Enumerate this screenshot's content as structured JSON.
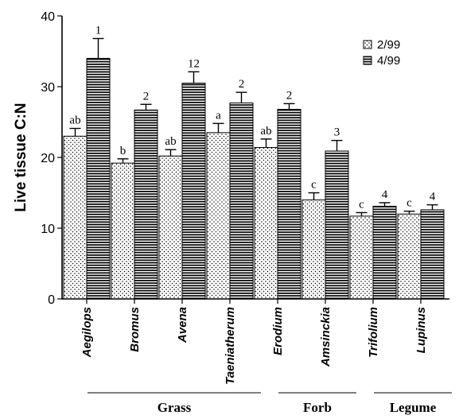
{
  "chart_data": {
    "type": "bar",
    "title": "",
    "ylabel": "Live tissue C:N",
    "xlabel": "",
    "ylim": [
      0,
      40
    ],
    "yticks": [
      0,
      10,
      20,
      30,
      40
    ],
    "categories": [
      "Aegilops",
      "Bromus",
      "Avena",
      "Taeniatherum",
      "Erodium",
      "Amsinckia",
      "Trifolium",
      "Lupinus"
    ],
    "series": [
      {
        "name": "2/99",
        "pattern": "dots",
        "values": [
          23.0,
          19.2,
          20.2,
          23.5,
          21.4,
          14.0,
          11.7,
          12.0
        ],
        "errors": [
          1.1,
          0.6,
          0.9,
          1.3,
          1.2,
          1.0,
          0.5,
          0.4
        ],
        "letters": [
          "ab",
          "b",
          "ab",
          "a",
          "ab",
          "c",
          "c",
          "c"
        ]
      },
      {
        "name": "4/99",
        "pattern": "horizontal-lines",
        "values": [
          34.0,
          26.7,
          30.5,
          27.7,
          26.8,
          20.9,
          13.1,
          12.6
        ],
        "errors": [
          2.8,
          0.8,
          1.6,
          1.5,
          0.8,
          1.5,
          0.5,
          0.7
        ],
        "letters": [
          "1",
          "2",
          "12",
          "2",
          "2",
          "3",
          "4",
          "4"
        ]
      }
    ],
    "groups": [
      {
        "label": "Grass",
        "categories": [
          "Aegilops",
          "Bromus",
          "Avena",
          "Taeniatherum"
        ]
      },
      {
        "label": "Forb",
        "categories": [
          "Erodium",
          "Amsinckia"
        ]
      },
      {
        "label": "Legume",
        "categories": [
          "Trifolium",
          "Lupinus"
        ]
      }
    ],
    "legend_position": "top-right",
    "grid": false
  }
}
